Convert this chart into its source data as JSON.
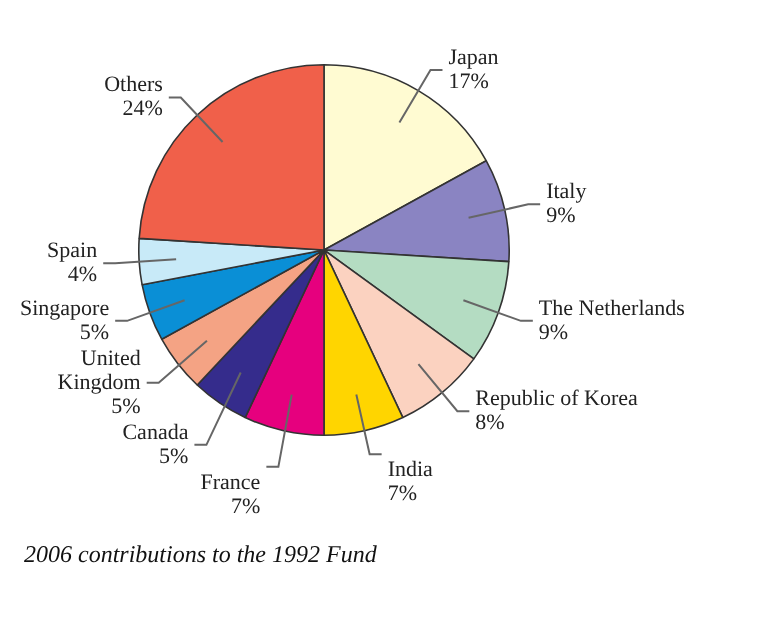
{
  "chart_data": {
    "type": "pie",
    "categories": [
      "Japan",
      "Italy",
      "The Netherlands",
      "Republic of Korea",
      "India",
      "France",
      "Canada",
      "United Kingdom",
      "Singapore",
      "Spain",
      "Others"
    ],
    "values": [
      17,
      9,
      9,
      8,
      7,
      7,
      5,
      5,
      5,
      4,
      24
    ],
    "value_labels": [
      "17%",
      "9%",
      "9%",
      "8%",
      "7%",
      "7%",
      "5%",
      "5%",
      "5%",
      "4%",
      "24%"
    ],
    "colors": [
      "#fffbd2",
      "#8a84c2",
      "#b4dcc2",
      "#fbd2c0",
      "#ffd500",
      "#e6007e",
      "#352c8c",
      "#f4a384",
      "#0a8fd6",
      "#c8eaf8",
      "#f0604a"
    ],
    "annotations": [
      "2006 contributions to the 1992 Fund"
    ],
    "legend": false
  }
}
